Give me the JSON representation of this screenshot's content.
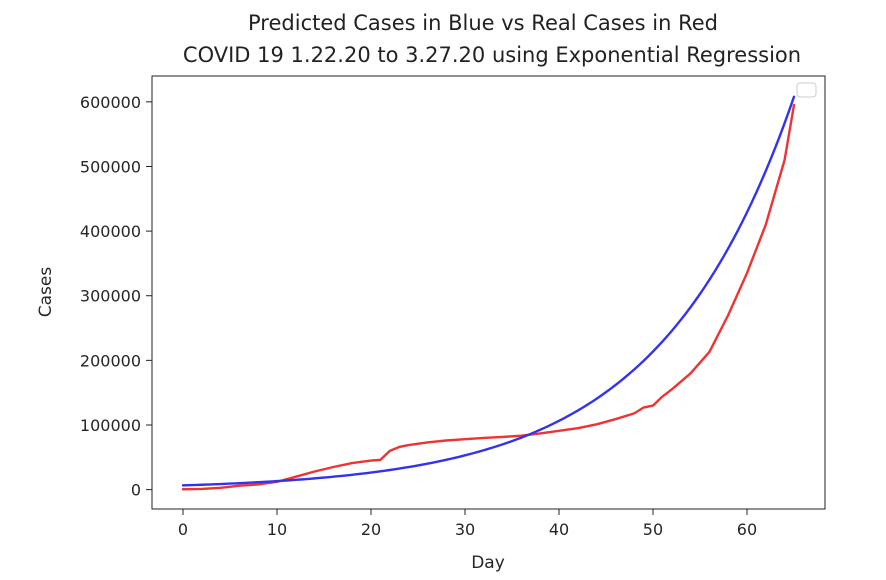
{
  "chart_data": {
    "type": "line",
    "title": "Predicted Cases in Blue vs Real Cases in Red",
    "subtitle": "COVID 19 1.22.20 to 3.27.20 using Exponential Regression",
    "xlabel": "Day",
    "ylabel": "Cases",
    "xlim": [
      -3.3,
      68.3
    ],
    "ylim": [
      -30000,
      640000
    ],
    "xticks": [
      0,
      10,
      20,
      30,
      40,
      50,
      60
    ],
    "yticks": [
      0,
      100000,
      200000,
      300000,
      400000,
      500000,
      600000
    ],
    "grid": false,
    "legend": {
      "placement": "top-right",
      "entries": []
    },
    "series": [
      {
        "color": "#ee3333",
        "points": [
          [
            0,
            555
          ],
          [
            2,
            1000
          ],
          [
            4,
            2800
          ],
          [
            6,
            6000
          ],
          [
            8,
            8000
          ],
          [
            10,
            12000
          ],
          [
            12,
            20000
          ],
          [
            14,
            28000
          ],
          [
            16,
            35000
          ],
          [
            18,
            41000
          ],
          [
            20,
            45000
          ],
          [
            21,
            46000
          ],
          [
            22,
            60000
          ],
          [
            23,
            66000
          ],
          [
            24,
            69000
          ],
          [
            26,
            73000
          ],
          [
            28,
            76000
          ],
          [
            30,
            78000
          ],
          [
            32,
            80000
          ],
          [
            34,
            81500
          ],
          [
            36,
            83500
          ],
          [
            38,
            87000
          ],
          [
            40,
            91000
          ],
          [
            42,
            95000
          ],
          [
            44,
            101000
          ],
          [
            46,
            109000
          ],
          [
            48,
            118000
          ],
          [
            49,
            127000
          ],
          [
            50,
            130000
          ],
          [
            51,
            144000
          ],
          [
            52,
            155000
          ],
          [
            54,
            180000
          ],
          [
            56,
            213000
          ],
          [
            58,
            270000
          ],
          [
            60,
            335000
          ],
          [
            62,
            410000
          ],
          [
            64,
            510000
          ],
          [
            65,
            595000
          ]
        ]
      },
      {
        "color": "#3333ee",
        "model": "exponential",
        "a": 6550,
        "b": 0.0697,
        "x_start": 0,
        "x_end": 65
      }
    ]
  }
}
